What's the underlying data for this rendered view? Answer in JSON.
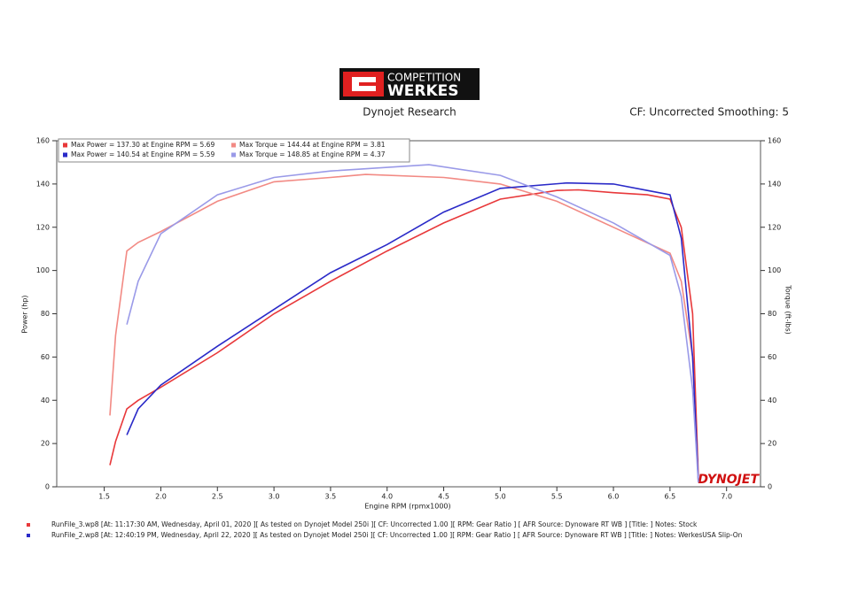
{
  "chart_data": {
    "type": "line",
    "logo": [
      "COMPETITION",
      "WERKES"
    ],
    "title": "Dynojet Research",
    "subtitle": "CF: Uncorrected Smoothing: 5",
    "x_label": "Engine RPM (rpmx1000)",
    "y_label": "Power (hp)",
    "y2_label": "Torque (ft-lbs)",
    "watermark": "DYNOJET",
    "xlim": [
      1.08,
      7.3
    ],
    "xticks": [
      1.5,
      {
        "value": 2,
        "label": "2.0"
      },
      2.5,
      {
        "value": 3,
        "label": "3.0"
      },
      3.5,
      {
        "value": 4,
        "label": "4.0"
      },
      4.5,
      {
        "value": 5,
        "label": "5.0"
      },
      5.5,
      {
        "value": 6,
        "label": "6.0"
      },
      6.5,
      {
        "value": 7,
        "label": "7.0"
      }
    ],
    "ylim": [
      0,
      160
    ],
    "yticks": [
      0,
      20,
      40,
      60,
      80,
      100,
      120,
      140,
      160
    ],
    "y2lim": [
      0,
      160
    ],
    "y2ticks": [
      0,
      20,
      40,
      60,
      80,
      100,
      120,
      140,
      160
    ],
    "series": [
      {
        "name": "Max Power = 137.30 at Engine RPM = 5.69",
        "color": "#e8383a",
        "x": [
          1.55,
          1.6,
          1.7,
          1.8,
          2.0,
          2.5,
          3.0,
          3.5,
          4.0,
          4.5,
          5.0,
          5.5,
          5.69,
          6.0,
          6.3,
          6.5,
          6.6,
          6.7,
          6.75
        ],
        "values": [
          10,
          21,
          36,
          40,
          46,
          62,
          80,
          95,
          109,
          122,
          133,
          137,
          137.3,
          136,
          135,
          133,
          120,
          80,
          5
        ]
      },
      {
        "name": "Max Torque = 144.44 at Engine RPM = 3.81",
        "color": "#f28a84",
        "axis": "y2",
        "x": [
          1.55,
          1.6,
          1.7,
          1.8,
          2.0,
          2.5,
          3.0,
          3.5,
          3.81,
          4.5,
          5.0,
          5.5,
          6.0,
          6.5,
          6.6,
          6.7,
          6.75
        ],
        "values": [
          33,
          70,
          109,
          113,
          118,
          132,
          141,
          143,
          144.4,
          143,
          140,
          132,
          120,
          108,
          95,
          60,
          3
        ]
      },
      {
        "name": "Max Power = 140.54 at Engine RPM = 5.59",
        "color": "#2a2ac8",
        "x": [
          1.7,
          1.8,
          2.0,
          2.5,
          3.0,
          3.5,
          4.0,
          4.5,
          5.0,
          5.59,
          6.0,
          6.3,
          6.5,
          6.6,
          6.7,
          6.75
        ],
        "values": [
          24,
          36,
          47,
          65,
          82,
          99,
          112,
          127,
          138,
          140.5,
          140,
          137,
          135,
          115,
          60,
          3
        ]
      },
      {
        "name": "Max Torque = 148.85 at Engine RPM = 4.37",
        "color": "#9a9ae8",
        "axis": "y2",
        "x": [
          1.7,
          1.8,
          2.0,
          2.5,
          3.0,
          3.5,
          4.37,
          5.0,
          5.5,
          6.0,
          6.5,
          6.6,
          6.7,
          6.75
        ],
        "values": [
          75,
          95,
          117,
          135,
          143,
          146,
          148.9,
          144,
          134,
          122,
          107,
          88,
          45,
          2
        ]
      }
    ],
    "footer": [
      {
        "text": "RunFile_3.wp8 [At: 11:17:30 AM, Wednesday, April 01, 2020 ][ As tested on Dynojet Model 250i ][ CF: Uncorrected 1.00 ][ RPM: Gear Ratio ] [ AFR Source: Dynoware RT WB ] [Title: ]  Notes: Stock",
        "color": "#e8383a"
      },
      {
        "text": "RunFile_2.wp8 [At: 12:40:19 PM, Wednesday, April 22, 2020 ][ As tested on Dynojet Model 250i ][ CF: Uncorrected 1.00 ][ RPM: Gear Ratio ] [ AFR Source: Dynoware RT WB ] [Title: ]  Notes: WerkesUSA Slip-On",
        "color": "#2a2ac8"
      }
    ]
  }
}
